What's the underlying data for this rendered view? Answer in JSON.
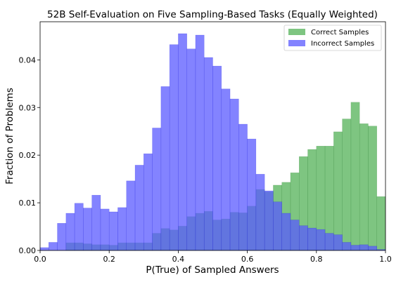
{
  "chart_data": {
    "type": "bar",
    "subtype": "overlapping-histogram",
    "title": "52B Self-Evaluation on Five Sampling-Based Tasks (Equally Weighted)",
    "xlabel": "P(True) of Sampled Answers",
    "ylabel": "Fraction of Problems",
    "xlim": [
      0.0,
      1.0
    ],
    "ylim": [
      0.0,
      0.048
    ],
    "x_ticks": [
      "0.0",
      "0.2",
      "0.4",
      "0.6",
      "0.8",
      "1.0"
    ],
    "y_ticks": [
      "0.00",
      "0.01",
      "0.02",
      "0.03",
      "0.04"
    ],
    "bin_width": 0.025,
    "legend_position": "top-right",
    "grid": false,
    "series": [
      {
        "name": "Correct Samples",
        "color": "#4caf50",
        "values": [
          0.0,
          0.0,
          0.0,
          0.0016,
          0.0016,
          0.0014,
          0.0012,
          0.0012,
          0.0011,
          0.0016,
          0.0016,
          0.0016,
          0.0016,
          0.0036,
          0.0046,
          0.0043,
          0.0051,
          0.0071,
          0.0078,
          0.0082,
          0.0064,
          0.0066,
          0.008,
          0.0079,
          0.0093,
          0.0128,
          0.0123,
          0.0137,
          0.0143,
          0.0163,
          0.0197,
          0.0212,
          0.0219,
          0.0219,
          0.0249,
          0.0276,
          0.0311,
          0.0266,
          0.0261,
          0.0113
        ]
      },
      {
        "name": "Incorrect Samples",
        "color": "#5a5aff",
        "values": [
          0.0006,
          0.0017,
          0.0057,
          0.0078,
          0.0099,
          0.0089,
          0.0116,
          0.0087,
          0.0081,
          0.009,
          0.0146,
          0.0179,
          0.0203,
          0.0257,
          0.0344,
          0.0432,
          0.0455,
          0.0423,
          0.0452,
          0.0405,
          0.0387,
          0.0339,
          0.0318,
          0.0265,
          0.0234,
          0.016,
          0.0125,
          0.0102,
          0.0078,
          0.0064,
          0.0052,
          0.0047,
          0.0044,
          0.0036,
          0.0033,
          0.0017,
          0.0011,
          0.0012,
          0.0009,
          0.0002
        ]
      }
    ]
  }
}
